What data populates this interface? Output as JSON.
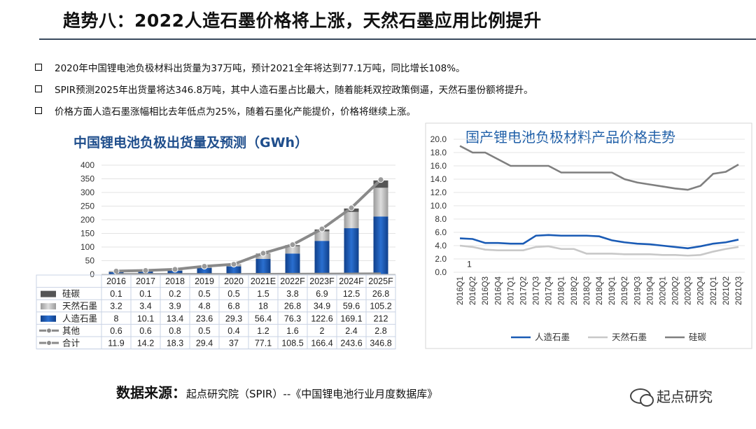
{
  "slide": {
    "title": "趋势八：2022人造石墨价格将上涨，天然石墨应用比例提升",
    "bullets": [
      "2020年中国锂电池负极材料出货量为37万吨，预计2021全年将达到77.1万吨，同比增长108%。",
      "SPIR预测2025年出货量将达346.8万吨，其中人造石墨占比最大，随着能耗双控政策倒逼，天然石墨份额将提升。",
      "价格方面人造石墨涨幅相比去年低点为25%，随着石墨化产能提价，价格将继续上涨。"
    ],
    "source_label": "数据来源：",
    "source_text": "起点研究院（SPIR）--《中国锂电池行业月度数据库》",
    "brand": "起点研究"
  },
  "chart_data": [
    {
      "type": "bar",
      "title": "中国锂电池负极出货量及预测（GWh）",
      "categories": [
        "2016",
        "2017",
        "2018",
        "2019",
        "2020",
        "2021E",
        "2022F",
        "2023F",
        "2024F",
        "2025F"
      ],
      "ylim": [
        0,
        400
      ],
      "yticks": [
        0,
        50,
        100,
        150,
        200,
        250,
        300,
        350,
        400
      ],
      "series": [
        {
          "name": "硅碳",
          "kind": "bar",
          "color": "#555555",
          "values": [
            0.1,
            0.1,
            0.2,
            0.5,
            0.5,
            1.5,
            3.8,
            6.9,
            12.5,
            26.8
          ]
        },
        {
          "name": "天然石墨",
          "kind": "bar",
          "color": "#b8b8b8",
          "values": [
            3.2,
            3.4,
            3.9,
            4.8,
            6.8,
            18,
            26.8,
            34.9,
            59.6,
            105.2
          ]
        },
        {
          "name": "人造石墨",
          "kind": "bar",
          "color": "#1a5bb5",
          "values": [
            8,
            10.1,
            13.4,
            23.6,
            29.3,
            56.4,
            76.3,
            122.6,
            169.1,
            212
          ]
        },
        {
          "name": "其他",
          "kind": "line",
          "color": "#8a8a8a",
          "values": [
            0.6,
            0.6,
            0.8,
            0.5,
            0.4,
            1.2,
            1.6,
            2,
            2.4,
            2.8
          ]
        },
        {
          "name": "合计",
          "kind": "line",
          "color": "#8a8a8a",
          "values": [
            11.9,
            14.2,
            18.3,
            29.4,
            37,
            77.1,
            108.5,
            166.4,
            243.6,
            346.8
          ]
        }
      ],
      "table_row_order": [
        "硅碳",
        "天然石墨",
        "人造石墨",
        "其他",
        "合计"
      ]
    },
    {
      "type": "line",
      "title": "国产锂电池负极材料产品价格走势",
      "categories": [
        "2016Q1",
        "2016Q2",
        "2016Q3",
        "2016Q4",
        "2017Q1",
        "2017Q2",
        "2017Q3",
        "2017Q4",
        "2018Q1",
        "2018Q2",
        "2018Q3",
        "2018Q4",
        "2019Q1",
        "2019Q2",
        "2019Q3",
        "2019Q4",
        "2020Q1",
        "2020Q2",
        "2020Q3",
        "2020Q4",
        "2021Q1",
        "2021Q2",
        "2021Q3"
      ],
      "ylim": [
        0,
        20
      ],
      "yticks": [
        "0.0",
        "2.0",
        "4.0",
        "6.0",
        "8.0",
        "10.0",
        "12.0",
        "14.0",
        "16.0",
        "18.0",
        "20.0"
      ],
      "annotation": "1",
      "series": [
        {
          "name": "人造石墨",
          "color": "#1a5bb5",
          "values": [
            5.1,
            5.0,
            4.4,
            4.4,
            4.3,
            4.3,
            5.5,
            5.6,
            5.5,
            5.5,
            5.5,
            5.4,
            4.8,
            4.5,
            4.3,
            4.2,
            4.0,
            3.8,
            3.6,
            3.9,
            4.3,
            4.5,
            4.9
          ]
        },
        {
          "name": "天然石墨",
          "color": "#c8c8c8",
          "values": [
            4.0,
            3.8,
            3.4,
            3.3,
            3.3,
            3.3,
            3.8,
            3.9,
            3.5,
            3.5,
            2.8,
            2.8,
            2.8,
            2.7,
            2.7,
            2.7,
            2.6,
            2.6,
            2.5,
            2.6,
            3.1,
            3.5,
            3.8
          ]
        },
        {
          "name": "硅碳",
          "color": "#7f7f7f",
          "values": [
            19.0,
            18.0,
            18.0,
            17.0,
            16.0,
            16.0,
            16.0,
            16.0,
            15.0,
            15.0,
            15.0,
            15.0,
            15.0,
            14.0,
            13.5,
            13.2,
            12.9,
            12.6,
            12.4,
            13.0,
            14.8,
            15.1,
            16.2
          ]
        }
      ]
    }
  ]
}
